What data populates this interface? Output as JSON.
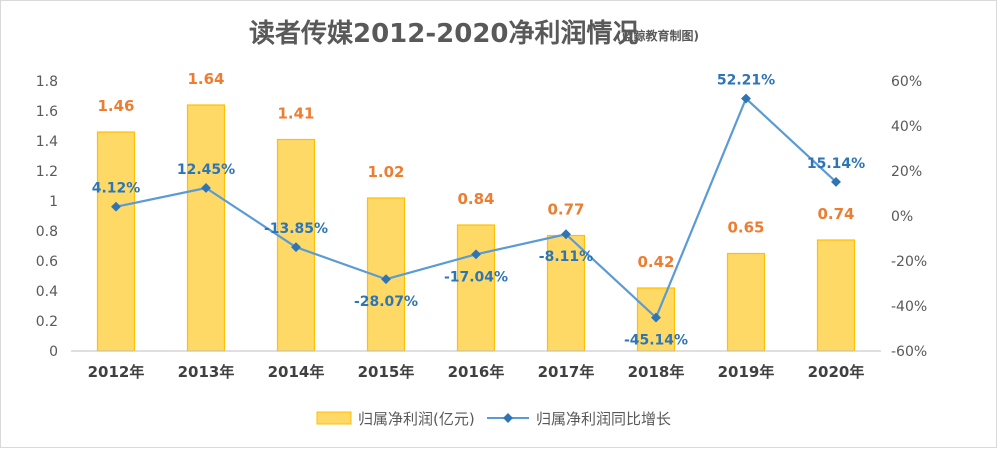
{
  "chart_data": {
    "type": "bar+line",
    "title": "读者传媒2012-2020净利润情况",
    "subtitle": "(蓝鲸教育制图)",
    "categories": [
      "2012年",
      "2013年",
      "2014年",
      "2015年",
      "2016年",
      "2017年",
      "2018年",
      "2019年",
      "2020年"
    ],
    "series": [
      {
        "name": "归属净利润(亿元)",
        "type": "bar",
        "axis": "left",
        "values": [
          1.46,
          1.64,
          1.41,
          1.02,
          0.84,
          0.77,
          0.42,
          0.65,
          0.74
        ],
        "labels": [
          "1.46",
          "1.64",
          "1.41",
          "1.02",
          "0.84",
          "0.77",
          "0.42",
          "0.65",
          "0.74"
        ],
        "color": "#ffd966",
        "border_color": "#ffc000",
        "label_color": "#ed7d31"
      },
      {
        "name": "归属净利润同比增长",
        "type": "line",
        "axis": "right",
        "values": [
          4.12,
          12.45,
          -13.85,
          -28.07,
          -17.04,
          -8.11,
          -45.14,
          52.21,
          15.14
        ],
        "labels": [
          "4.12%",
          "12.45%",
          "-13.85%",
          "-28.07%",
          "-17.04%",
          "-8.11%",
          "-45.14%",
          "52.21%",
          "15.14%"
        ],
        "color": "#5b9bd5",
        "label_color": "#2e75b6"
      }
    ],
    "y_left": {
      "min": 0,
      "max": 1.8,
      "ticks": [
        0,
        0.2,
        0.4,
        0.6,
        0.8,
        1,
        1.2,
        1.4,
        1.6,
        1.8
      ],
      "tick_labels": [
        "0",
        "0.2",
        "0.4",
        "0.6",
        "0.8",
        "1",
        "1.2",
        "1.4",
        "1.6",
        "1.8"
      ]
    },
    "y_right": {
      "min": -60,
      "max": 60,
      "ticks": [
        -60,
        -40,
        -20,
        0,
        20,
        40,
        60
      ],
      "tick_labels": [
        "-60%",
        "-40%",
        "-20%",
        "0%",
        "20%",
        "40%",
        "60%"
      ]
    },
    "grid": false,
    "legend": {
      "position": "bottom"
    }
  }
}
